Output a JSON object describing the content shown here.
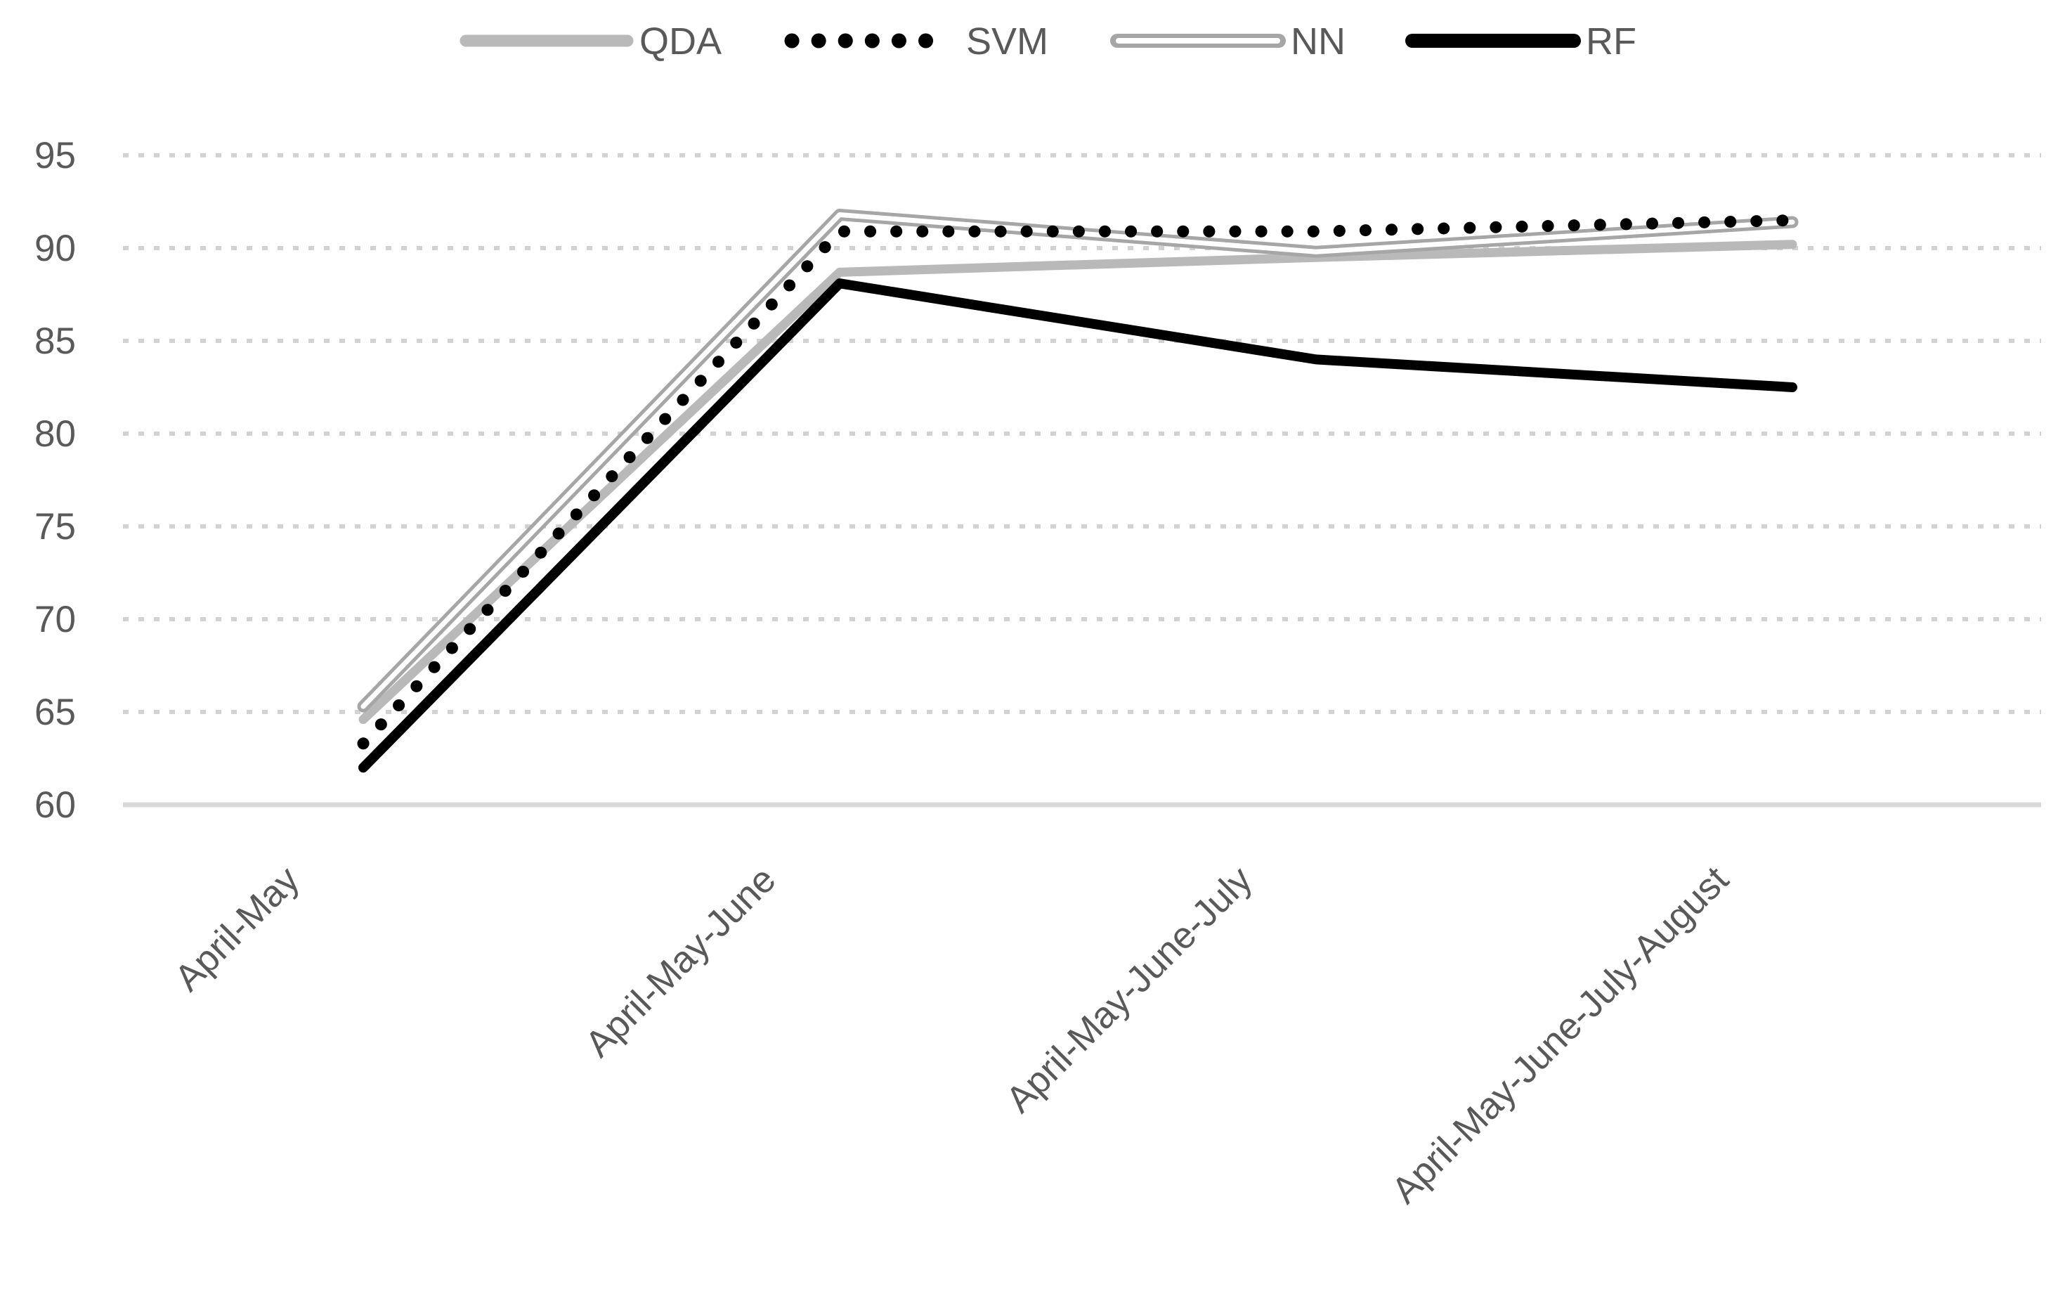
{
  "chart_data": {
    "type": "line",
    "title": "",
    "xlabel": "",
    "ylabel": "",
    "categories": [
      "April-May",
      "April-May-June",
      "April-May-June-July",
      "April-May-June-July-August"
    ],
    "series": [
      {
        "name": "QDA",
        "values": [
          64.6,
          88.7,
          89.5,
          90.2
        ],
        "color": "#b9b9b9",
        "style": "solid"
      },
      {
        "name": "SVM",
        "values": [
          63.3,
          90.9,
          90.9,
          91.5
        ],
        "color": "#000000",
        "style": "dotted"
      },
      {
        "name": "NN",
        "values": [
          65.3,
          91.8,
          89.8,
          91.4
        ],
        "color": "#a6a6a6",
        "style": "outline-white-center"
      },
      {
        "name": "RF",
        "values": [
          62.0,
          88.1,
          84.0,
          82.5
        ],
        "color": "#000000",
        "style": "solid"
      }
    ],
    "ylim": [
      60,
      95
    ],
    "yticks": [
      60,
      65,
      70,
      75,
      80,
      85,
      90,
      95
    ],
    "grid": "horizontal-dotted",
    "legend_position": "top",
    "axis_text_color": "#595959",
    "gridline_color": "#d2d2d2",
    "axis_line_color": "#d9d9d9",
    "white_center_color": "#ffffff"
  }
}
